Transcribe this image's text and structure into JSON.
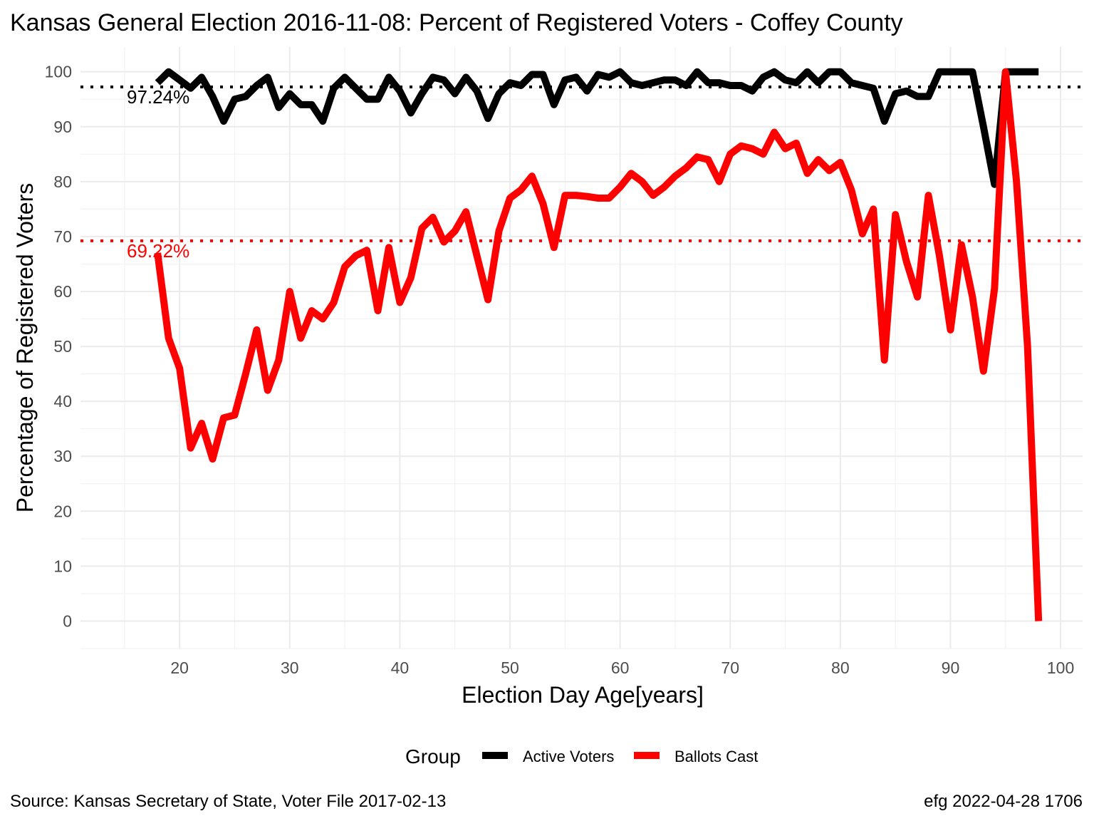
{
  "chart_data": {
    "type": "line",
    "title": "Kansas General Election 2016-11-08:  Percent of Registered Voters - Coffey County",
    "xlabel": "Election Day Age[years]",
    "ylabel": "Percentage of Registered Voters",
    "xlim": [
      11,
      102
    ],
    "ylim": [
      -5,
      104.5
    ],
    "x_ticks": [
      20,
      30,
      40,
      50,
      60,
      70,
      80,
      90,
      100
    ],
    "y_ticks": [
      0,
      10,
      20,
      30,
      40,
      50,
      60,
      70,
      80,
      90,
      100
    ],
    "grid": true,
    "legend": {
      "title": "Group",
      "position": "bottom"
    },
    "series": [
      {
        "name": "Active Voters",
        "color": "#000000",
        "x": [
          18,
          19,
          20,
          21,
          22,
          23,
          24,
          25,
          26,
          27,
          28,
          29,
          30,
          31,
          32,
          33,
          34,
          35,
          36,
          37,
          38,
          39,
          40,
          41,
          42,
          43,
          44,
          45,
          46,
          47,
          48,
          49,
          50,
          51,
          52,
          53,
          54,
          55,
          56,
          57,
          58,
          59,
          60,
          61,
          62,
          63,
          64,
          65,
          66,
          67,
          68,
          69,
          70,
          71,
          72,
          73,
          74,
          75,
          76,
          77,
          78,
          79,
          80,
          81,
          82,
          83,
          84,
          85,
          86,
          87,
          88,
          89,
          90,
          91,
          92,
          93,
          94,
          95,
          96,
          97,
          98
        ],
        "y": [
          98,
          100,
          98.5,
          97,
          99,
          95.5,
          91,
          95,
          95.5,
          97.5,
          99,
          93.5,
          96,
          94,
          94,
          91,
          97,
          99,
          97,
          95,
          95,
          99,
          96.5,
          92.5,
          96,
          99,
          98.5,
          96,
          99,
          96.5,
          91.5,
          96,
          98,
          97.5,
          99.5,
          99.5,
          94,
          98.5,
          99,
          96.5,
          99.5,
          99,
          100,
          98,
          97.5,
          98,
          98.5,
          98.5,
          97.5,
          100,
          98,
          98,
          97.5,
          97.5,
          96.5,
          99,
          100,
          98.5,
          98,
          100,
          98,
          100,
          100,
          98,
          97.5,
          97,
          91,
          96,
          96.5,
          95.5,
          95.5,
          100,
          100,
          100,
          100,
          90,
          79.5,
          100,
          100,
          100,
          100
        ]
      },
      {
        "name": "Ballots Cast",
        "color": "#ff0000",
        "x": [
          18,
          19,
          20,
          21,
          22,
          23,
          24,
          25,
          26,
          27,
          28,
          29,
          30,
          31,
          32,
          33,
          34,
          35,
          36,
          37,
          38,
          39,
          40,
          41,
          42,
          43,
          44,
          45,
          46,
          47,
          48,
          49,
          50,
          51,
          52,
          53,
          54,
          55,
          56,
          57,
          58,
          59,
          60,
          61,
          62,
          63,
          64,
          65,
          66,
          67,
          68,
          69,
          70,
          71,
          72,
          73,
          74,
          75,
          76,
          77,
          78,
          79,
          80,
          81,
          82,
          83,
          84,
          85,
          86,
          87,
          88,
          89,
          90,
          91,
          92,
          93,
          94,
          95,
          96,
          97,
          98
        ],
        "y": [
          67,
          51.5,
          46,
          31.5,
          36,
          29.5,
          37,
          37.5,
          45,
          53,
          42,
          47.5,
          60,
          51.5,
          56.5,
          55,
          58,
          64.5,
          66.5,
          67.5,
          56.5,
          68,
          58,
          62.5,
          71.5,
          73.5,
          69,
          71,
          74.5,
          66.5,
          58.5,
          71,
          77,
          78.5,
          81,
          76,
          68,
          77.5,
          77.5,
          77.3,
          77,
          77,
          79,
          81.5,
          80,
          77.5,
          79,
          81,
          82.5,
          84.5,
          84,
          80,
          85,
          86.5,
          86,
          85,
          89,
          86,
          87,
          81.5,
          84,
          82,
          83.5,
          78.5,
          70.5,
          75,
          47.5,
          74,
          65.5,
          59,
          77.5,
          66.5,
          53,
          68.5,
          59,
          45.5,
          60.5,
          100,
          80,
          50,
          0
        ]
      }
    ],
    "reference_lines": [
      {
        "series": "Active Voters",
        "value": 97.24,
        "label": "97.24%",
        "color": "#000000"
      },
      {
        "series": "Ballots Cast",
        "value": 69.22,
        "label": "69.22%",
        "color": "#ff0000"
      }
    ]
  },
  "caption": {
    "left": "Source:  Kansas Secretary of State, Voter File  2017-02-13",
    "right": "efg 2022-04-28 1706"
  }
}
